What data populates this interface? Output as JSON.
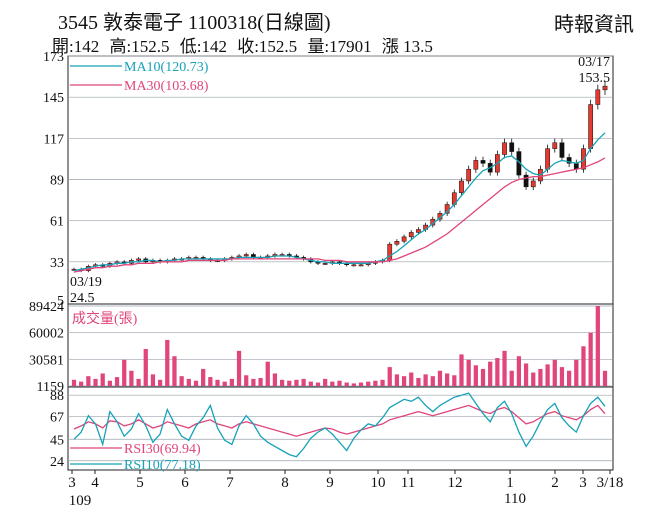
{
  "header": {
    "code": "3545",
    "name": "敦泰電子",
    "date": "1100318",
    "period": "(日線圖)",
    "brand": "時報資訊",
    "stats": [
      "開:142",
      "高:152.5",
      "低:142",
      "收:152.5",
      "量:17901",
      "漲 13.5"
    ]
  },
  "chart_data": [
    {
      "type": "candlestick",
      "title": "3545 敦泰電子 1100318(日線圖)",
      "y_ticks": [
        173,
        145,
        117,
        89,
        61,
        33,
        5
      ],
      "ylim": [
        5,
        173
      ],
      "x_tick_labels": [
        "3",
        "4",
        "5",
        "6",
        "7",
        "8",
        "9",
        "10",
        "11",
        "12",
        "1",
        "2",
        "3",
        "3/18"
      ],
      "x_sub_labels": [
        "109",
        "110"
      ],
      "annotations": {
        "high_date": "03/17",
        "high_value": "153.5",
        "low_date": "03/19",
        "low_value": "24.5"
      },
      "series": [
        {
          "name": "MA10",
          "last": "MA10(120.73)",
          "color": "#17a2b8"
        },
        {
          "name": "MA30",
          "last": "MA30(103.68)",
          "color": "#e0457b"
        }
      ],
      "price_path": [
        28,
        27,
        30,
        31,
        30,
        32,
        33,
        32,
        34,
        35,
        33,
        34,
        33,
        34,
        35,
        35,
        36,
        36,
        35,
        34,
        34,
        35,
        36,
        37,
        38,
        36,
        36,
        37,
        38,
        38,
        37,
        36,
        35,
        33,
        32,
        32,
        33,
        32,
        31,
        31,
        31,
        32,
        33,
        34,
        45,
        47,
        50,
        53,
        55,
        58,
        62,
        66,
        72,
        80,
        88,
        96,
        102,
        100,
        94,
        106,
        114,
        108,
        92,
        84,
        88,
        96,
        110,
        114,
        104,
        100,
        96,
        110,
        140,
        150,
        152.5
      ],
      "ma10_path": [
        27,
        28,
        29,
        30,
        31,
        31,
        32,
        32,
        33,
        33,
        34,
        34,
        33,
        34,
        34,
        35,
        35,
        35,
        35,
        35,
        35,
        35,
        35,
        36,
        36,
        36,
        36,
        36,
        37,
        37,
        37,
        36,
        35,
        34,
        33,
        33,
        32,
        32,
        32,
        32,
        32,
        32,
        33,
        34,
        37,
        40,
        44,
        48,
        52,
        55,
        59,
        63,
        67,
        72,
        78,
        84,
        90,
        95,
        97,
        100,
        104,
        105,
        101,
        96,
        93,
        92,
        96,
        100,
        102,
        101,
        100,
        102,
        110,
        116,
        120.73
      ],
      "ma30_path": [
        26,
        27,
        28,
        29,
        29,
        30,
        30,
        31,
        31,
        32,
        32,
        32,
        33,
        33,
        33,
        33,
        34,
        34,
        34,
        34,
        34,
        34,
        35,
        35,
        35,
        35,
        35,
        35,
        35,
        35,
        35,
        35,
        35,
        35,
        35,
        34,
        34,
        34,
        33,
        33,
        33,
        33,
        33,
        33,
        34,
        35,
        37,
        39,
        41,
        43,
        46,
        49,
        52,
        56,
        60,
        64,
        68,
        72,
        76,
        80,
        84,
        87,
        89,
        90,
        91,
        91,
        92,
        93,
        94,
        95,
        96,
        97,
        99,
        101,
        103.68
      ]
    },
    {
      "type": "bar",
      "title": "成交量(張)",
      "y_ticks": [
        89424,
        60002,
        30581,
        1159
      ],
      "ylim": [
        1159,
        89424
      ],
      "color": "#e0457b",
      "values": [
        8000,
        6000,
        12000,
        9000,
        15000,
        7000,
        11000,
        30000,
        18000,
        9000,
        42000,
        14000,
        8000,
        52000,
        34000,
        12000,
        9000,
        7000,
        20000,
        11000,
        8000,
        6000,
        9000,
        40000,
        13000,
        9000,
        10000,
        28000,
        15000,
        8000,
        7000,
        8000,
        9000,
        6000,
        5000,
        9000,
        6000,
        7000,
        5000,
        4000,
        5000,
        6000,
        7000,
        8000,
        22000,
        14000,
        12000,
        16000,
        10000,
        14000,
        12000,
        18000,
        15000,
        13000,
        36000,
        30000,
        24000,
        20000,
        28000,
        32000,
        40000,
        18000,
        34000,
        26000,
        16000,
        20000,
        25000,
        30000,
        22000,
        18000,
        30000,
        45000,
        60000,
        89424,
        17901
      ]
    },
    {
      "type": "line",
      "title": "RSI",
      "y_ticks": [
        88,
        67,
        45,
        24
      ],
      "ylim": [
        15,
        95
      ],
      "series": [
        {
          "name": "RSI30",
          "last": "RSI30(69.94)",
          "color": "#e0457b",
          "values": [
            55,
            58,
            62,
            60,
            56,
            63,
            62,
            58,
            60,
            64,
            60,
            56,
            58,
            62,
            60,
            58,
            56,
            60,
            62,
            64,
            60,
            58,
            56,
            60,
            62,
            60,
            58,
            56,
            54,
            52,
            50,
            48,
            50,
            52,
            54,
            56,
            55,
            52,
            50,
            52,
            54,
            56,
            58,
            60,
            64,
            66,
            68,
            70,
            72,
            70,
            68,
            70,
            72,
            74,
            76,
            78,
            75,
            72,
            70,
            74,
            76,
            72,
            66,
            60,
            62,
            66,
            70,
            72,
            68,
            66,
            64,
            68,
            74,
            78,
            69.94
          ]
        },
        {
          "name": "RSI10",
          "last": "RSI10(77.18)",
          "color": "#17a2b8",
          "values": [
            45,
            52,
            68,
            60,
            40,
            72,
            62,
            48,
            55,
            70,
            58,
            42,
            50,
            74,
            60,
            48,
            44,
            58,
            66,
            78,
            56,
            44,
            40,
            58,
            68,
            60,
            48,
            42,
            38,
            34,
            30,
            28,
            36,
            46,
            52,
            56,
            50,
            42,
            34,
            46,
            54,
            60,
            58,
            66,
            76,
            80,
            84,
            82,
            86,
            78,
            72,
            78,
            82,
            86,
            88,
            90,
            80,
            70,
            62,
            76,
            82,
            70,
            52,
            38,
            48,
            62,
            74,
            80,
            66,
            58,
            52,
            68,
            80,
            86,
            77.18
          ]
        }
      ]
    }
  ]
}
